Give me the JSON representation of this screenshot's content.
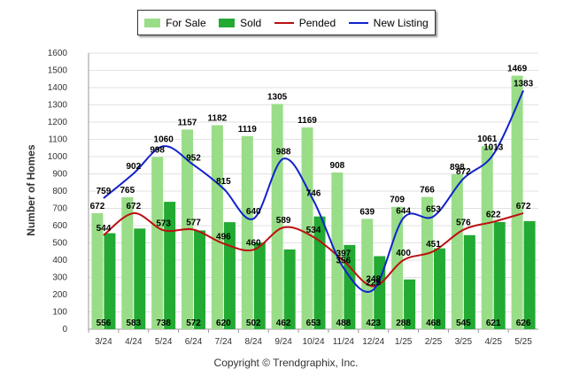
{
  "chart_data": {
    "type": "bar",
    "ylabel": "Number of Homes",
    "ylim": [
      0,
      1600
    ],
    "yticks": [
      0,
      100,
      200,
      300,
      400,
      500,
      600,
      700,
      800,
      900,
      1000,
      1100,
      1200,
      1300,
      1400,
      1500,
      1600
    ],
    "categories": [
      "3/24",
      "4/24",
      "5/24",
      "6/24",
      "7/24",
      "8/24",
      "9/24",
      "10/24",
      "11/24",
      "12/24",
      "1/25",
      "2/25",
      "3/25",
      "4/25",
      "5/25"
    ],
    "grid": true,
    "legend_position": "top-center",
    "series": [
      {
        "name": "For Sale",
        "kind": "bar",
        "color": "#99dd88",
        "values": [
          672,
          765,
          998,
          1157,
          1182,
          1119,
          1305,
          1169,
          908,
          639,
          709,
          766,
          898,
          1061,
          1469
        ]
      },
      {
        "name": "Sold",
        "kind": "bar",
        "color": "#22aa33",
        "values": [
          556,
          583,
          738,
          572,
          620,
          502,
          462,
          653,
          488,
          423,
          288,
          468,
          545,
          621,
          626
        ]
      },
      {
        "name": "Pended",
        "kind": "line",
        "color": "#bb1111",
        "values": [
          544,
          672,
          573,
          577,
          496,
          460,
          589,
          534,
          397,
          248,
          400,
          451,
          576,
          622,
          672
        ]
      },
      {
        "name": "New Listing",
        "kind": "line",
        "color": "#1122cc",
        "values": [
          759,
          902,
          1060,
          952,
          815,
          640,
          988,
          746,
          356,
          229,
          644,
          653,
          872,
          1013,
          1383
        ]
      }
    ]
  },
  "copyright": "Copyright © Trendgraphix, Inc."
}
